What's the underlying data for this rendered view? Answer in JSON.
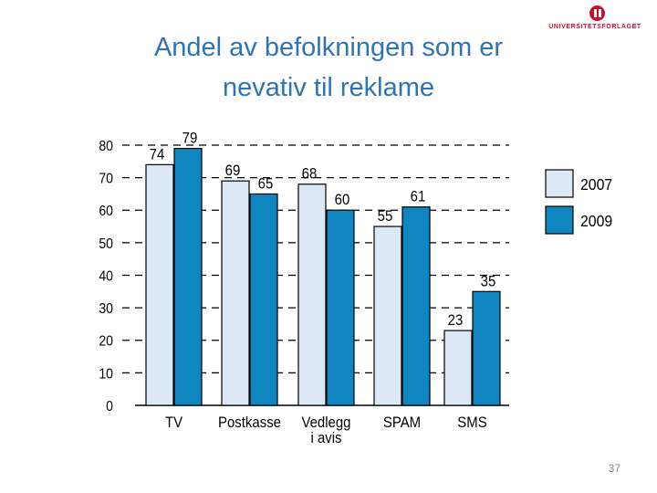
{
  "slide": {
    "title_line1": "Andel av befolkningen som er",
    "title_line2": "nevativ til reklame",
    "logo_text": "UNIVERSITETSFORLAGET",
    "page_number": "37"
  },
  "colors": {
    "title": "#2e74b5",
    "series_2007": "#dce9f4",
    "series_2009": "#0f86bf",
    "outline": "#000000",
    "logo": "#c8102e"
  },
  "chart_data": {
    "type": "bar",
    "title": "Andel av befolkningen som er nevativ til reklame",
    "xlabel": "",
    "ylabel": "",
    "categories": [
      "TV",
      "Postkasse",
      "Vedlegg i avis",
      "SPAM",
      "SMS"
    ],
    "category_lines": [
      [
        "TV"
      ],
      [
        "Postkasse"
      ],
      [
        "Vedlegg",
        "i avis"
      ],
      [
        "SPAM"
      ],
      [
        "SMS"
      ]
    ],
    "series": [
      {
        "name": "2007",
        "values": [
          74,
          69,
          68,
          55,
          23
        ]
      },
      {
        "name": "2009",
        "values": [
          79,
          65,
          60,
          61,
          35
        ]
      }
    ],
    "yticks": [
      0,
      10,
      20,
      30,
      40,
      50,
      60,
      70,
      80
    ],
    "ylim": [
      0,
      80
    ],
    "grid": true,
    "legend": "right"
  }
}
